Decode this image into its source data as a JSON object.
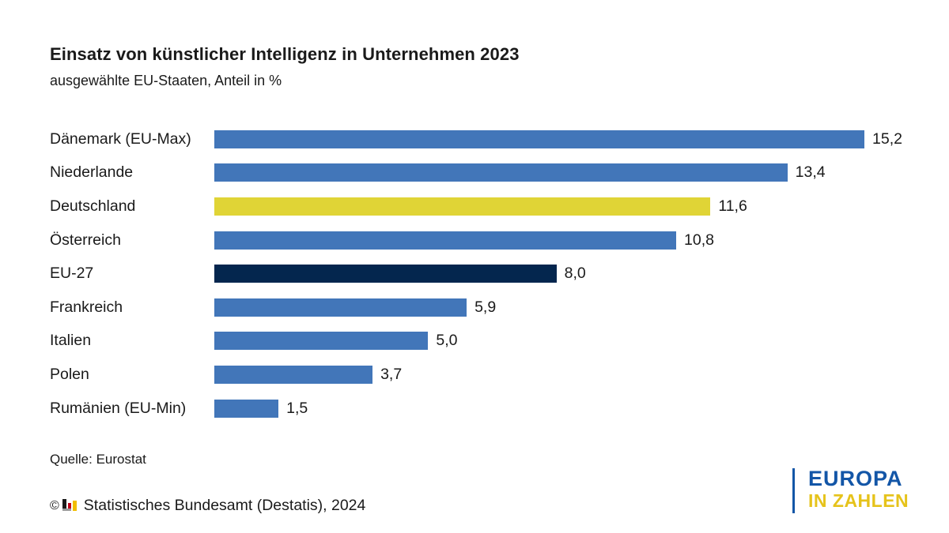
{
  "header": {
    "title": "Einsatz von künstlicher Intelligenz in Unternehmen 2023",
    "subtitle": "ausgewählte EU-Staaten, Anteil in %"
  },
  "chart_data": {
    "type": "bar",
    "orientation": "horizontal",
    "unit": "%",
    "title": "Einsatz von künstlicher Intelligenz in Unternehmen 2023",
    "subtitle": "ausgewählte EU-Staaten, Anteil in %",
    "categories": [
      "Dänemark (EU-Max)",
      "Niederlande",
      "Deutschland",
      "Österreich",
      "EU-27",
      "Frankreich",
      "Italien",
      "Polen",
      "Rumänien (EU-Min)"
    ],
    "values": [
      15.2,
      13.4,
      11.6,
      10.8,
      8.0,
      5.9,
      5.0,
      3.7,
      1.5
    ],
    "value_labels": [
      "15,2",
      "13,4",
      "11,6",
      "10,8",
      "8,0",
      "5,9",
      "5,0",
      "3,7",
      "1,5"
    ],
    "bar_colors": [
      "#4276b9",
      "#4276b9",
      "#e0d436",
      "#4276b9",
      "#04264e",
      "#4276b9",
      "#4276b9",
      "#4276b9",
      "#4276b9"
    ],
    "highlight_notes": {
      "Deutschland": "yellow highlight",
      "EU-27": "dark navy highlight"
    },
    "xlim": [
      0,
      15.2
    ],
    "grid": false,
    "legend": false,
    "data_labels": "end of bar, German decimal comma"
  },
  "footer": {
    "source": "Quelle: Eurostat",
    "copyright_symbol": "©",
    "copyright_text": "Statistisches Bundesamt (Destatis), 2024"
  },
  "logo": {
    "line1": "EUROPA",
    "line2": "IN ZAHLEN",
    "color_line1": "#1356a7",
    "color_line2": "#e6c31b"
  },
  "colors": {
    "bar_default": "#4276b9",
    "bar_highlight_germany": "#e0d436",
    "bar_highlight_eu": "#04264e",
    "text": "#1a1a1a"
  }
}
